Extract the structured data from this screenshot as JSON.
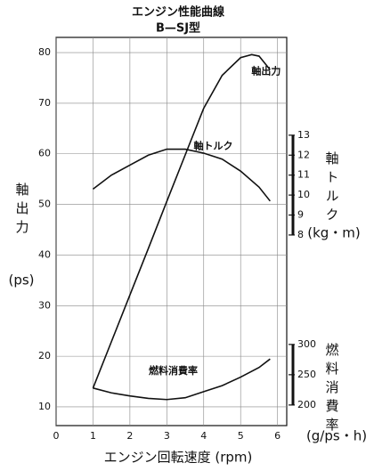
{
  "chart_data": {
    "type": "line",
    "title": "エンジン性能曲線",
    "subtitle": "B—SJ型",
    "x_label": "エンジン回転速度 (rpm)",
    "y_label": "軸出力",
    "y_unit": "(ps)",
    "y2_label": "軸トルク",
    "y2_unit": "(kg・m)",
    "y3_label": "燃料消費率",
    "y3_unit": "(g/ps・h)",
    "xlim": [
      0,
      6.25
    ],
    "xticks": [
      0,
      1,
      2,
      3,
      4,
      5,
      6
    ],
    "ylim": [
      6.3,
      83
    ],
    "yticks": [
      10,
      20,
      30,
      40,
      50,
      60,
      70,
      80
    ],
    "y2lim": [
      -1.55,
      17.9
    ],
    "y2ticks": [
      8,
      9,
      10,
      11,
      12,
      13
    ],
    "y3lim": [
      166,
      807
    ],
    "y3ticks": [
      200,
      250,
      300
    ],
    "grid": true,
    "series": [
      {
        "name": "軸出力",
        "color": "#111111",
        "x": [
          1,
          1.5,
          2,
          2.5,
          3,
          3.5,
          4,
          4.5,
          5,
          5.3,
          5.5,
          5.8
        ],
        "values": [
          13.7,
          22.9,
          32.1,
          41.3,
          50.6,
          59.8,
          69,
          75.5,
          79,
          79.6,
          79.3,
          76.6
        ]
      },
      {
        "name": "軸トルク",
        "color": "#111111",
        "axis": "y2",
        "x": [
          1,
          1.5,
          2,
          2.5,
          3,
          3.5,
          4,
          4.5,
          5,
          5.5,
          5.8
        ],
        "values": [
          10.3,
          11.0,
          11.5,
          12.0,
          12.3,
          12.3,
          12.1,
          11.8,
          11.2,
          10.4,
          9.7
        ]
      },
      {
        "name": "燃料消費率",
        "color": "#111111",
        "axis": "y3",
        "x": [
          1,
          1.5,
          2,
          2.5,
          3,
          3.5,
          4,
          4.5,
          5,
          5.5,
          5.8
        ],
        "values": [
          228,
          220,
          215,
          211,
          209,
          212,
          222,
          232,
          246,
          262,
          276
        ]
      }
    ]
  }
}
